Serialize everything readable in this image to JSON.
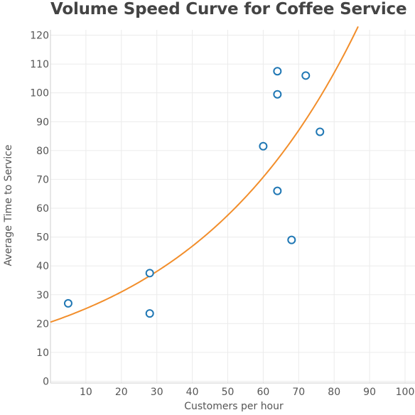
{
  "chart_data": {
    "type": "scatter",
    "title": "Volume Speed Curve for Coffee Service",
    "xlabel": "Customers per hour",
    "ylabel": "Average Time to Service",
    "xlim": [
      0,
      100
    ],
    "ylim": [
      0,
      120
    ],
    "x_ticks": [
      10,
      20,
      30,
      40,
      50,
      60,
      70,
      80,
      90,
      100
    ],
    "y_ticks": [
      0,
      10,
      20,
      30,
      40,
      50,
      60,
      70,
      80,
      90,
      100,
      110,
      120
    ],
    "grid": true,
    "point_color": "#1f77b4",
    "trend_color": "#f28e2b",
    "trend_type": "exponential",
    "trend_curve": {
      "a": 20.5,
      "b": 0.02065
    },
    "series": [
      {
        "points": [
          {
            "x": 5,
            "y": 27
          },
          {
            "x": 28,
            "y": 37.5
          },
          {
            "x": 28,
            "y": 23.5
          },
          {
            "x": 60,
            "y": 81.5
          },
          {
            "x": 64,
            "y": 107.5
          },
          {
            "x": 64,
            "y": 99.5
          },
          {
            "x": 64,
            "y": 66
          },
          {
            "x": 68,
            "y": 49
          },
          {
            "x": 72,
            "y": 106
          },
          {
            "x": 76,
            "y": 86.5
          }
        ]
      }
    ]
  }
}
